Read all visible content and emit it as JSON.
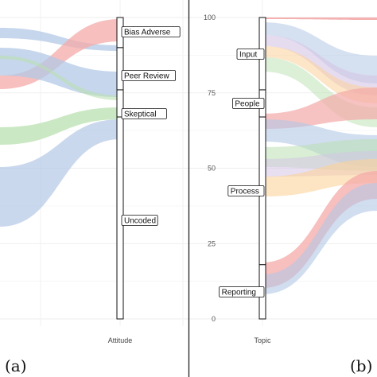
{
  "panels": {
    "left_label": "(a)",
    "right_label": "(b)"
  },
  "chart_data": [
    {
      "type": "alluvial",
      "panel": "(a)",
      "axis_label": "Attitude",
      "ylim": [
        0,
        100
      ],
      "grid": true,
      "strata": [
        {
          "name": "Bias Adverse",
          "from": 90,
          "to": 100
        },
        {
          "name": "Peer Review",
          "from": 76,
          "to": 90
        },
        {
          "name": "Skeptical",
          "from": 67,
          "to": 76
        },
        {
          "name": "Uncoded",
          "from": 0,
          "to": 67
        }
      ],
      "flow_colors": [
        "#f4a9a8",
        "#b3c8e6",
        "#b9e0b0"
      ]
    },
    {
      "type": "alluvial",
      "panel": "(b)",
      "axis_label": "Topic",
      "yticks": [
        0,
        25,
        50,
        75,
        100
      ],
      "ylim": [
        0,
        100
      ],
      "grid": true,
      "strata": [
        {
          "name": "Input",
          "from": 76,
          "to": 100
        },
        {
          "name": "People",
          "from": 67,
          "to": 76
        },
        {
          "name": "Process",
          "from": 18,
          "to": 67
        },
        {
          "name": "Reporting",
          "from": 0,
          "to": 18
        }
      ],
      "flow_colors": [
        "#f4a9a8",
        "#b3c8e6",
        "#b9e0b0",
        "#fbd29a",
        "#d6c4e6"
      ]
    }
  ]
}
